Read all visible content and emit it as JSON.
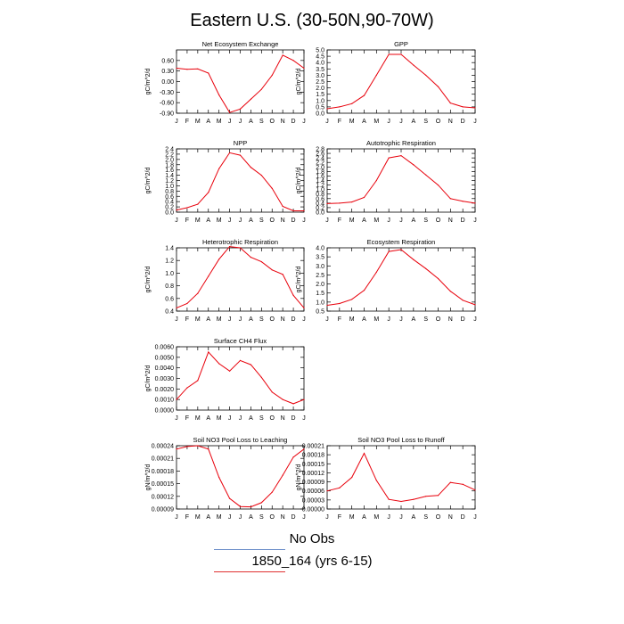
{
  "title": "Eastern U.S. (30-50N,90-70W)",
  "months": [
    "J",
    "F",
    "M",
    "A",
    "M",
    "J",
    "J",
    "A",
    "S",
    "O",
    "N",
    "D",
    "J"
  ],
  "legend": [
    {
      "label": "No Obs",
      "color": "#6b8ec9"
    },
    {
      "label": "1850_164 (yrs 6-15)",
      "color": "#e03030"
    }
  ],
  "line_color": "#e8000b",
  "chart_data": [
    {
      "type": "line",
      "title": "Net Ecosystem Exchange",
      "ylabel": "gC/m^2/d",
      "ylim": [
        -0.9,
        0.9
      ],
      "yticks": [
        "-0.90",
        "-0.60",
        "-0.30",
        "0.00",
        "0.30",
        "0.60"
      ],
      "ytick_values": [
        -0.9,
        -0.6,
        -0.3,
        0.0,
        0.3,
        0.6
      ],
      "values": [
        0.38,
        0.35,
        0.36,
        0.24,
        -0.38,
        -0.88,
        -0.78,
        -0.5,
        -0.22,
        0.18,
        0.75,
        0.6,
        0.38
      ]
    },
    {
      "type": "line",
      "title": "GPP",
      "ylabel": "gC/m^2/d",
      "ylim": [
        0,
        5
      ],
      "yticks": [
        "0.0",
        "0.5",
        "1.0",
        "1.5",
        "2.0",
        "2.5",
        "3.0",
        "3.5",
        "4.0",
        "4.5",
        "5.0"
      ],
      "ytick_values": [
        0,
        0.5,
        1.0,
        1.5,
        2.0,
        2.5,
        3.0,
        3.5,
        4.0,
        4.5,
        5.0
      ],
      "values": [
        0.35,
        0.5,
        0.75,
        1.4,
        3.0,
        4.65,
        4.65,
        3.8,
        3.0,
        2.1,
        0.8,
        0.5,
        0.42
      ]
    },
    {
      "type": "line",
      "title": "NPP",
      "ylabel": "gC/m^2/d",
      "ylim": [
        0,
        2.4
      ],
      "yticks": [
        "0.0",
        "0.2",
        "0.4",
        "0.6",
        "0.8",
        "1.0",
        "1.2",
        "1.4",
        "1.6",
        "1.8",
        "2.0",
        "2.2",
        "2.4"
      ],
      "ytick_values": [
        0,
        0.2,
        0.4,
        0.6,
        0.8,
        1.0,
        1.2,
        1.4,
        1.6,
        1.8,
        2.0,
        2.2,
        2.4
      ],
      "values": [
        0.08,
        0.17,
        0.3,
        0.75,
        1.65,
        2.25,
        2.16,
        1.7,
        1.4,
        0.9,
        0.22,
        0.05,
        0.05
      ]
    },
    {
      "type": "line",
      "title": "Autotrophic Respiration",
      "ylabel": "gC/m^2/d",
      "ylim": [
        0,
        2.8
      ],
      "yticks": [
        "0.0",
        "0.2",
        "0.4",
        "0.6",
        "0.8",
        "1.0",
        "1.2",
        "1.4",
        "1.6",
        "1.8",
        "2.0",
        "2.2",
        "2.4",
        "2.6",
        "2.8"
      ],
      "ytick_values": [
        0,
        0.2,
        0.4,
        0.6,
        0.8,
        1.0,
        1.2,
        1.4,
        1.6,
        1.8,
        2.0,
        2.2,
        2.4,
        2.6,
        2.8
      ],
      "values": [
        0.38,
        0.4,
        0.45,
        0.65,
        1.4,
        2.4,
        2.5,
        2.1,
        1.65,
        1.2,
        0.6,
        0.48,
        0.4
      ]
    },
    {
      "type": "line",
      "title": "Heterotrophic Respiration",
      "ylabel": "gC/m^2/d",
      "ylim": [
        0.4,
        1.4
      ],
      "yticks": [
        "0.4",
        "0.6",
        "0.8",
        "1.0",
        "1.2",
        "1.4"
      ],
      "ytick_values": [
        0.4,
        0.6,
        0.8,
        1.0,
        1.2,
        1.4
      ],
      "values": [
        0.45,
        0.52,
        0.68,
        0.95,
        1.22,
        1.42,
        1.4,
        1.25,
        1.18,
        1.05,
        0.98,
        0.65,
        0.45
      ]
    },
    {
      "type": "line",
      "title": "Ecosystem Respiration",
      "ylabel": "gC/m^2/d",
      "ylim": [
        0.5,
        4.0
      ],
      "yticks": [
        "0.5",
        "1.0",
        "1.5",
        "2.0",
        "2.5",
        "3.0",
        "3.5",
        "4.0"
      ],
      "ytick_values": [
        0.5,
        1.0,
        1.5,
        2.0,
        2.5,
        3.0,
        3.5,
        4.0
      ],
      "values": [
        0.82,
        0.92,
        1.15,
        1.65,
        2.65,
        3.8,
        3.9,
        3.35,
        2.85,
        2.3,
        1.6,
        1.1,
        0.85
      ]
    },
    {
      "type": "line",
      "title": "Surface CH4 Flux",
      "ylabel": "gC/m^2/d",
      "ylim": [
        0,
        0.006
      ],
      "yticks": [
        "0.0000",
        "0.0010",
        "0.0020",
        "0.0030",
        "0.0040",
        "0.0050",
        "0.0060"
      ],
      "ytick_values": [
        0,
        0.001,
        0.002,
        0.003,
        0.004,
        0.005,
        0.006
      ],
      "values": [
        0.001,
        0.0021,
        0.0028,
        0.0055,
        0.0044,
        0.0037,
        0.0047,
        0.0043,
        0.0031,
        0.0017,
        0.001,
        0.0006,
        0.001
      ]
    },
    {
      "type": "line",
      "title": "Soil NO3 Pool Loss to Leaching",
      "ylabel": "gN/m^2/d",
      "ylim": [
        9e-05,
        0.00024
      ],
      "yticks": [
        "0.00009",
        "0.00012",
        "0.00015",
        "0.00018",
        "0.00021",
        "0.00024"
      ],
      "ytick_values": [
        9e-05,
        0.00012,
        0.00015,
        0.00018,
        0.00021,
        0.00024
      ],
      "values": [
        0.000232,
        0.000238,
        0.00024,
        0.000232,
        0.000165,
        0.000115,
        9.6e-05,
        9.5e-05,
        0.000105,
        0.00013,
        0.00017,
        0.000213,
        0.000232
      ]
    },
    {
      "type": "line",
      "title": "Soil NO3 Pool Loss to Runoff",
      "ylabel": "gN/m^2/d",
      "ylim": [
        0,
        0.00021
      ],
      "yticks": [
        "0.00000",
        "0.00003",
        "0.00006",
        "0.00009",
        "0.00012",
        "0.00015",
        "0.00018",
        "0.00021"
      ],
      "ytick_values": [
        0,
        3e-05,
        6e-05,
        9e-05,
        0.00012,
        0.00015,
        0.00018,
        0.00021
      ],
      "values": [
        6e-05,
        7e-05,
        0.000105,
        0.000185,
        9.5e-05,
        3.2e-05,
        2.5e-05,
        3.2e-05,
        4.2e-05,
        4.5e-05,
        8.8e-05,
        8.2e-05,
        6.3e-05
      ]
    }
  ]
}
